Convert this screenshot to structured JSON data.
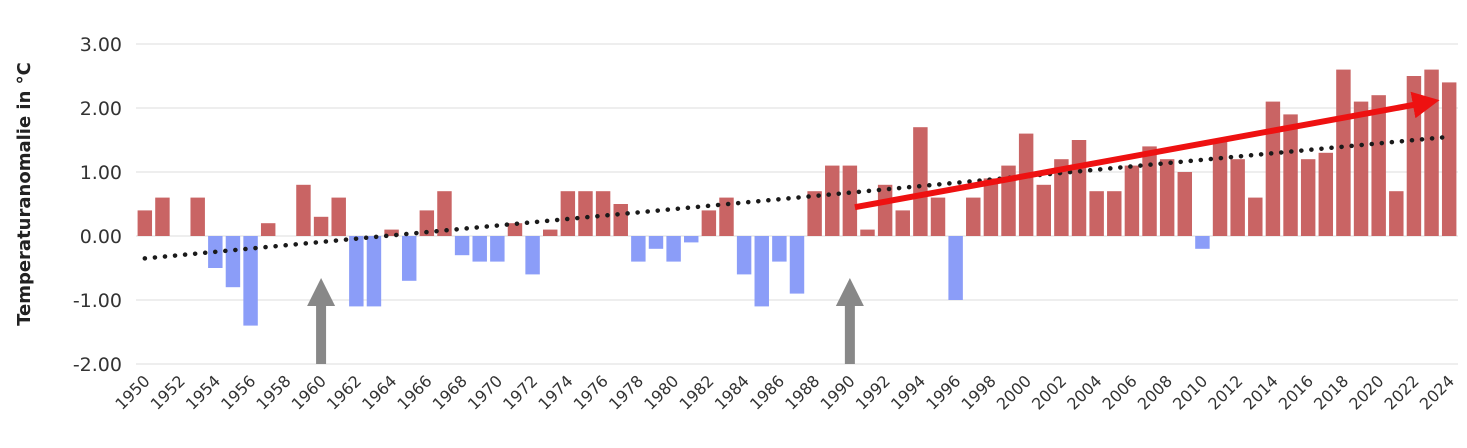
{
  "chart_data": {
    "type": "bar",
    "title": "",
    "ylabel": "Temperaturanomalie in °C",
    "xlabel": "",
    "ylim": [
      -2,
      3
    ],
    "y_ticks": [
      "3.00",
      "2.00",
      "1.00",
      "0.00",
      "-1.00",
      "-2.00"
    ],
    "x_tick_labels": [
      "1950",
      "1952",
      "1954",
      "1956",
      "1958",
      "1960",
      "1962",
      "1964",
      "1966",
      "1968",
      "1970",
      "1972",
      "1974",
      "1976",
      "1978",
      "1980",
      "1982",
      "1984",
      "1986",
      "1988",
      "1990",
      "1992",
      "1994",
      "1996",
      "1998",
      "2000",
      "2002",
      "2004",
      "2006",
      "2008",
      "2010",
      "2012",
      "2014",
      "2016",
      "2018",
      "2020",
      "2022",
      "2024"
    ],
    "grid": true,
    "colors": {
      "positive": "#c96464",
      "negative": "#8b9df8",
      "trend": "#1a1a1a",
      "highlight_arrow": "#ee1111",
      "marker_arrow": "#888888"
    },
    "years": [
      1950,
      1951,
      1952,
      1953,
      1954,
      1955,
      1956,
      1957,
      1958,
      1959,
      1960,
      1961,
      1962,
      1963,
      1964,
      1965,
      1966,
      1967,
      1968,
      1969,
      1970,
      1971,
      1972,
      1973,
      1974,
      1975,
      1976,
      1977,
      1978,
      1979,
      1980,
      1981,
      1982,
      1983,
      1984,
      1985,
      1986,
      1987,
      1988,
      1989,
      1990,
      1991,
      1992,
      1993,
      1994,
      1995,
      1996,
      1997,
      1998,
      1999,
      2000,
      2001,
      2002,
      2003,
      2004,
      2005,
      2006,
      2007,
      2008,
      2009,
      2010,
      2011,
      2012,
      2013,
      2014,
      2015,
      2016,
      2017,
      2018,
      2019,
      2020,
      2021,
      2022,
      2023,
      2024
    ],
    "values": [
      0.4,
      0.6,
      0.0,
      0.6,
      -0.5,
      -0.8,
      -1.4,
      0.2,
      0.0,
      0.8,
      0.3,
      0.6,
      -1.1,
      -1.1,
      0.1,
      -0.7,
      0.4,
      0.7,
      -0.3,
      -0.4,
      -0.4,
      0.2,
      -0.6,
      0.1,
      0.7,
      0.7,
      0.7,
      0.5,
      -0.4,
      -0.2,
      -0.4,
      -0.1,
      0.4,
      0.6,
      -0.6,
      -1.1,
      -0.4,
      -0.9,
      0.7,
      1.1,
      1.1,
      0.1,
      0.8,
      0.4,
      1.7,
      0.6,
      -1.0,
      0.6,
      0.9,
      1.1,
      1.6,
      0.8,
      1.2,
      1.5,
      0.7,
      0.7,
      1.1,
      1.4,
      1.2,
      1.0,
      -0.2,
      1.5,
      1.2,
      0.6,
      2.1,
      1.9,
      1.2,
      1.3,
      2.6,
      2.1,
      2.2,
      0.7,
      2.5,
      2.6,
      2.4
    ],
    "trend": {
      "start": {
        "year": 1950,
        "value": -0.35
      },
      "end": {
        "year": 2024,
        "value": 1.55
      }
    },
    "annotations": [
      {
        "type": "arrow",
        "color": "red",
        "from": {
          "year": 1990,
          "value": 0.45
        },
        "to": {
          "year": 2023,
          "value": 2.1
        }
      },
      {
        "type": "arrow",
        "color": "gray",
        "at_year": 1960,
        "direction": "up"
      },
      {
        "type": "arrow",
        "color": "gray",
        "at_year": 1990,
        "direction": "up"
      }
    ]
  }
}
